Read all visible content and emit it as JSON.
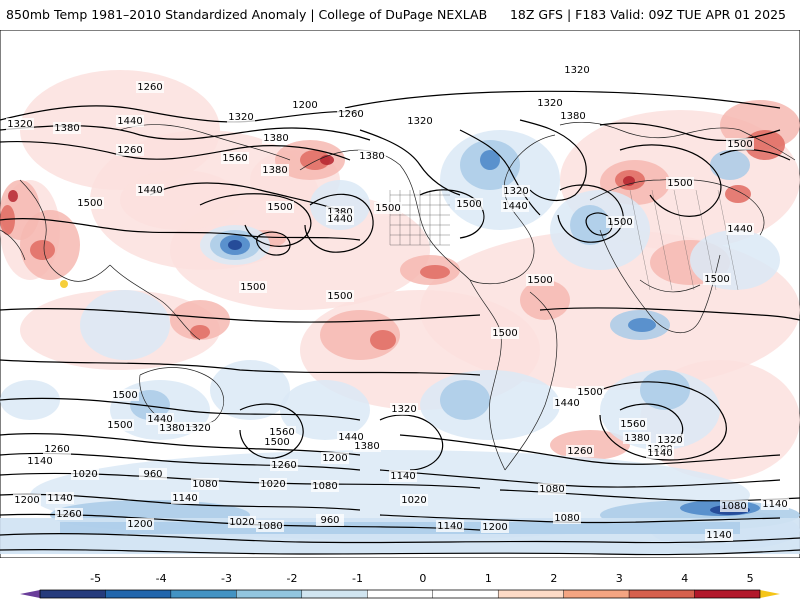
{
  "header": {
    "left": "850mb Temp 1981–2010 Standardized Anomaly | College of DuPage NEXLAB",
    "right": "18Z GFS | F183 Valid: 09Z TUE APR 01 2025"
  },
  "colorbar": {
    "ticks": [
      "-5",
      "-4",
      "-3",
      "-2",
      "-1",
      "0",
      "1",
      "2",
      "3",
      "4",
      "5"
    ],
    "colors": [
      "#6a3d9a",
      "#253b7c",
      "#2166ac",
      "#4393c3",
      "#92c5de",
      "#d1e5f0",
      "#ffffff",
      "#ffffff",
      "#fddbc7",
      "#f4a582",
      "#d6604d",
      "#b2182b",
      "#67001f",
      "#f5c518"
    ]
  },
  "map": {
    "contour_labels": [
      {
        "text": "1320"
      },
      {
        "text": "1260"
      },
      {
        "text": "1200"
      },
      {
        "text": "1320"
      },
      {
        "text": "1260"
      },
      {
        "text": "1320"
      },
      {
        "text": "1320"
      },
      {
        "text": "1380"
      },
      {
        "text": "1440"
      },
      {
        "text": "1380"
      },
      {
        "text": "1320"
      },
      {
        "text": "1380"
      },
      {
        "text": "1260"
      },
      {
        "text": "1380"
      },
      {
        "text": "1380"
      },
      {
        "text": "1560"
      },
      {
        "text": "1440"
      },
      {
        "text": "1500"
      },
      {
        "text": "1500"
      },
      {
        "text": "1380"
      },
      {
        "text": "1500"
      },
      {
        "text": "1440"
      },
      {
        "text": "1500"
      },
      {
        "text": "1440"
      },
      {
        "text": "1320"
      },
      {
        "text": "1500"
      },
      {
        "text": "1500"
      },
      {
        "text": "1500"
      },
      {
        "text": "1440"
      },
      {
        "text": "1500"
      },
      {
        "text": "1500"
      },
      {
        "text": "1500"
      },
      {
        "text": "1500"
      },
      {
        "text": "1500"
      },
      {
        "text": "1500"
      },
      {
        "text": "1500"
      },
      {
        "text": "1440"
      },
      {
        "text": "1380"
      },
      {
        "text": "1320"
      },
      {
        "text": "1560"
      },
      {
        "text": "1500"
      },
      {
        "text": "1440"
      },
      {
        "text": "1380"
      },
      {
        "text": "1320"
      },
      {
        "text": "1500"
      },
      {
        "text": "1440"
      },
      {
        "text": "1560"
      },
      {
        "text": "1380"
      },
      {
        "text": "1320"
      },
      {
        "text": "1260"
      },
      {
        "text": "1200"
      },
      {
        "text": "1140"
      },
      {
        "text": "1260"
      },
      {
        "text": "1140"
      },
      {
        "text": "1020"
      },
      {
        "text": "960"
      },
      {
        "text": "1080"
      },
      {
        "text": "1260"
      },
      {
        "text": "1200"
      },
      {
        "text": "1140"
      },
      {
        "text": "1020"
      },
      {
        "text": "1080"
      },
      {
        "text": "1140"
      },
      {
        "text": "1080"
      },
      {
        "text": "1080"
      },
      {
        "text": "1200"
      },
      {
        "text": "1140"
      },
      {
        "text": "1140"
      },
      {
        "text": "1020"
      },
      {
        "text": "1260"
      },
      {
        "text": "1200"
      },
      {
        "text": "1020"
      },
      {
        "text": "1080"
      },
      {
        "text": "960"
      },
      {
        "text": "1140"
      },
      {
        "text": "1200"
      },
      {
        "text": "1080"
      },
      {
        "text": "1140"
      }
    ]
  }
}
